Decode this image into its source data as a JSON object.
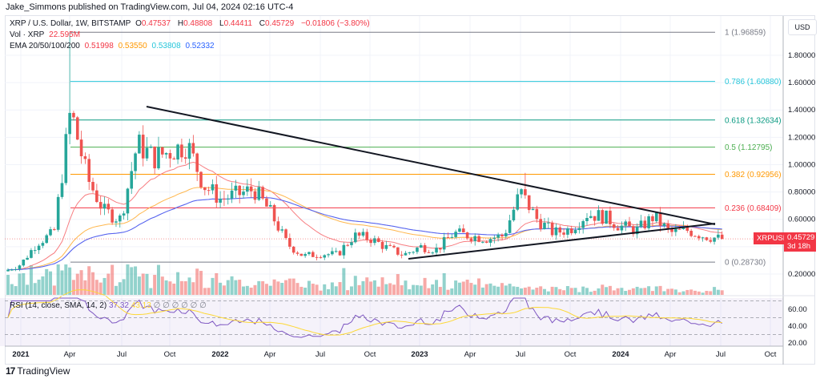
{
  "publisher": "Jake_Simmons published on TradingView.com, Jul 04, 2024 02:16 UTC-4",
  "legend": {
    "symbol": "XRP / U.S. Dollar, 1W, BITSTAMP",
    "o_label": "O",
    "o": "0.47537",
    "h_label": "H",
    "h": "0.48808",
    "l_label": "L",
    "l": "0.44411",
    "c_label": "C",
    "c": "0.45729",
    "change": "−0.01806 (−3.80%)",
    "vol_label": "Vol · XRP",
    "vol": "22.595M",
    "ema_label": "EMA 20/50/100/200",
    "ema20": "0.51998",
    "ema50": "0.53550",
    "ema100": "0.53808",
    "ema200": "0.52332"
  },
  "rsi_legend": {
    "label": "RSI (14, close, SMA, 14, 2)",
    "rsi": "37.32",
    "sma": "43.13",
    "empty_values": [
      "∅",
      "∅",
      "∅",
      "∅",
      "∅",
      "∅"
    ]
  },
  "currency": "USD",
  "price_tag": {
    "symbol": "XRPUSD",
    "price": "0.45729",
    "countdown": "3d 18h"
  },
  "price_axis": [
    "1.80000",
    "1.60000",
    "1.40000",
    "1.20000",
    "1.00000",
    "0.80000",
    "0.60000",
    "0.20000"
  ],
  "rsi_axis": [
    "60.00",
    "40.00",
    "20.00"
  ],
  "time_axis": [
    "2021",
    "Apr",
    "Jul",
    "Oct",
    "2022",
    "Apr",
    "Jul",
    "Oct",
    "2023",
    "Apr",
    "Jul",
    "Oct",
    "2024",
    "Apr",
    "Jul",
    "Oct"
  ],
  "fib_levels": [
    {
      "label": "1 (1.96859)",
      "price": 1.96859,
      "color": "#787b86"
    },
    {
      "label": "0.786 (1.60880)",
      "price": 1.6088,
      "color": "#26c6da"
    },
    {
      "label": "0.618 (1.32634)",
      "price": 1.32634,
      "color": "#089981"
    },
    {
      "label": "0.5 (1.12795)",
      "price": 1.12795,
      "color": "#4caf50"
    },
    {
      "label": "0.382 (0.92956)",
      "price": 0.92956,
      "color": "#ff9800"
    },
    {
      "label": "0.236 (0.68409)",
      "price": 0.68409,
      "color": "#f23645"
    },
    {
      "label": "0 (0.28730)",
      "price": 0.2873,
      "color": "#787b86"
    }
  ],
  "colors": {
    "up": "#26a69a",
    "down": "#ef5350",
    "ema20": "#f77c80",
    "ema50": "#ffb74d",
    "ema100": "#80deea",
    "ema200": "#5b5bf0",
    "rsi": "#7e57c2",
    "rsi_sma": "#fdd835"
  },
  "logo": "TradingView",
  "chart_data": {
    "type": "candlestick",
    "title": "XRP / U.S. Dollar, 1W, BITSTAMP",
    "ylabel": "USD",
    "ylim": [
      0.12,
      2.0
    ],
    "monthly_close_approx": {
      "months": [
        "2020-12",
        "2021-01",
        "2021-02",
        "2021-03",
        "2021-04",
        "2021-05",
        "2021-06",
        "2021-07",
        "2021-08",
        "2021-09",
        "2021-10",
        "2021-11",
        "2021-12",
        "2022-01",
        "2022-02",
        "2022-03",
        "2022-04",
        "2022-05",
        "2022-06",
        "2022-07",
        "2022-08",
        "2022-09",
        "2022-10",
        "2022-11",
        "2022-12",
        "2023-01",
        "2023-02",
        "2023-03",
        "2023-04",
        "2023-05",
        "2023-06",
        "2023-07",
        "2023-08",
        "2023-09",
        "2023-10",
        "2023-11",
        "2023-12",
        "2024-01",
        "2024-02",
        "2024-03",
        "2024-04",
        "2024-05",
        "2024-06",
        "2024-07"
      ],
      "close": [
        0.22,
        0.27,
        0.43,
        0.5,
        1.4,
        0.9,
        0.66,
        0.6,
        1.15,
        1.05,
        1.1,
        1.15,
        0.85,
        0.75,
        0.78,
        0.82,
        0.65,
        0.42,
        0.33,
        0.35,
        0.34,
        0.48,
        0.46,
        0.39,
        0.34,
        0.4,
        0.38,
        0.5,
        0.48,
        0.46,
        0.48,
        0.8,
        0.6,
        0.5,
        0.53,
        0.64,
        0.62,
        0.55,
        0.52,
        0.62,
        0.5,
        0.52,
        0.48,
        0.457
      ]
    },
    "spikes": [
      {
        "month": "2021-04",
        "high": 1.96859
      },
      {
        "month": "2023-07",
        "high": 0.94
      }
    ],
    "trendlines": [
      {
        "name": "upper",
        "from": {
          "date": "2021-08",
          "price": 1.43
        },
        "to": {
          "date": "2024-06",
          "price": 0.57
        }
      },
      {
        "name": "lower",
        "from": {
          "date": "2022-11",
          "price": 0.3
        },
        "to": {
          "date": "2024-06",
          "price": 0.57
        }
      }
    ],
    "indicators": [
      "Volume",
      "EMA 20/50/100/200",
      "RSI 14"
    ]
  }
}
